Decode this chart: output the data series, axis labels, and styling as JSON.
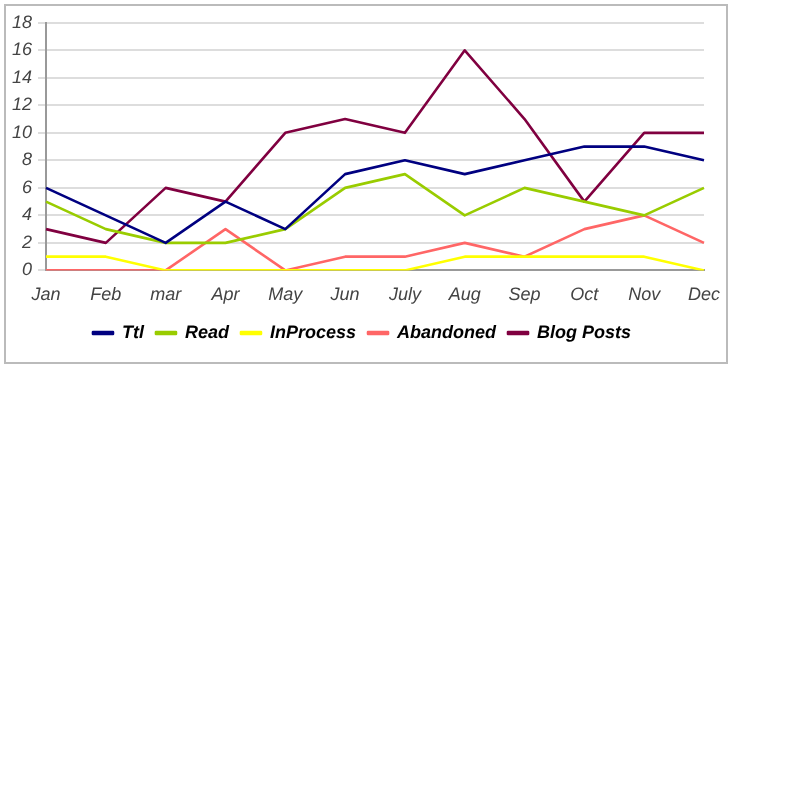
{
  "chart_data": {
    "type": "line",
    "categories": [
      "Jan",
      "Feb",
      "mar",
      "Apr",
      "May",
      "Jun",
      "July",
      "Aug",
      "Sep",
      "Oct",
      "Nov",
      "Dec"
    ],
    "series": [
      {
        "name": "Ttl",
        "color": "#000080",
        "values": [
          6,
          4,
          2,
          5,
          3,
          7,
          8,
          7,
          8,
          9,
          9,
          8
        ]
      },
      {
        "name": "Read",
        "color": "#99cc00",
        "values": [
          5,
          3,
          2,
          2,
          3,
          6,
          7,
          4,
          6,
          5,
          4,
          6
        ]
      },
      {
        "name": "InProcess",
        "color": "#ffff00",
        "values": [
          1,
          1,
          0,
          0,
          0,
          0,
          0,
          1,
          1,
          1,
          1,
          0
        ]
      },
      {
        "name": "Abandoned",
        "color": "#ff6666",
        "values": [
          0,
          0,
          0,
          3,
          0,
          1,
          1,
          2,
          1,
          3,
          4,
          2
        ]
      },
      {
        "name": "Blog Posts",
        "color": "#800040",
        "values": [
          3,
          2,
          6,
          5,
          10,
          11,
          10,
          16,
          11,
          5,
          10,
          10
        ]
      }
    ],
    "ylim": [
      0,
      18
    ],
    "yticks": [
      0,
      2,
      4,
      6,
      8,
      10,
      12,
      14,
      16,
      18
    ],
    "grid": "y",
    "legend": "bottom",
    "marker": "none",
    "line_style": "solid"
  }
}
